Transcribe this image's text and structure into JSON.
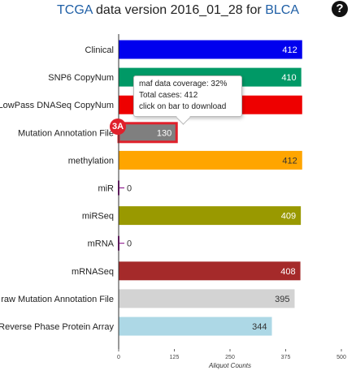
{
  "header": {
    "title_link_source": "TCGA",
    "title_middle": "data version 2016_01_28 for",
    "title_link_disease": "BLCA",
    "help_icon": "question-circle-icon",
    "help_glyph": "?"
  },
  "tooltip": {
    "line1": "maf data coverage: 32%",
    "line2": "Total cases: 412",
    "line3": "click on bar to download"
  },
  "callout": {
    "label": "3A",
    "color": "#e0202b",
    "highlight_category": "Mutation Annotation File"
  },
  "chart_data": {
    "type": "bar",
    "orientation": "horizontal",
    "title": "",
    "xlabel": "Aliquot Counts",
    "ylabel": "",
    "xlim": [
      0,
      500
    ],
    "xticks": [
      0,
      125,
      250,
      375,
      500
    ],
    "grid": false,
    "categories": [
      "Clinical",
      "SNP6 CopyNum",
      "LowPass DNASeq CopyNum",
      "Mutation Annotation File",
      "methylation",
      "miR",
      "miRSeq",
      "mRNA",
      "mRNASeq",
      "raw Mutation Annotation File",
      "Reverse Phase Protein Array"
    ],
    "values": [
      412,
      410,
      412,
      130,
      412,
      0,
      409,
      0,
      408,
      395,
      344
    ],
    "value_labels": [
      "412",
      "410",
      "",
      "130",
      "412",
      "0",
      "409",
      "0",
      "408",
      "395",
      "344"
    ],
    "colors": [
      "#0000ee",
      "#009966",
      "#ee0000",
      "#7f7f7f",
      "#ffa500",
      "#800080",
      "#999900",
      "#800080",
      "#a52a2a",
      "#d3d3d3",
      "#add8e6"
    ],
    "label_colors": [
      "#ffffff",
      "#ffffff",
      "#ffffff",
      "#ffffff",
      "#333333",
      "#333333",
      "#ffffff",
      "#333333",
      "#ffffff",
      "#333333",
      "#333333"
    ]
  }
}
